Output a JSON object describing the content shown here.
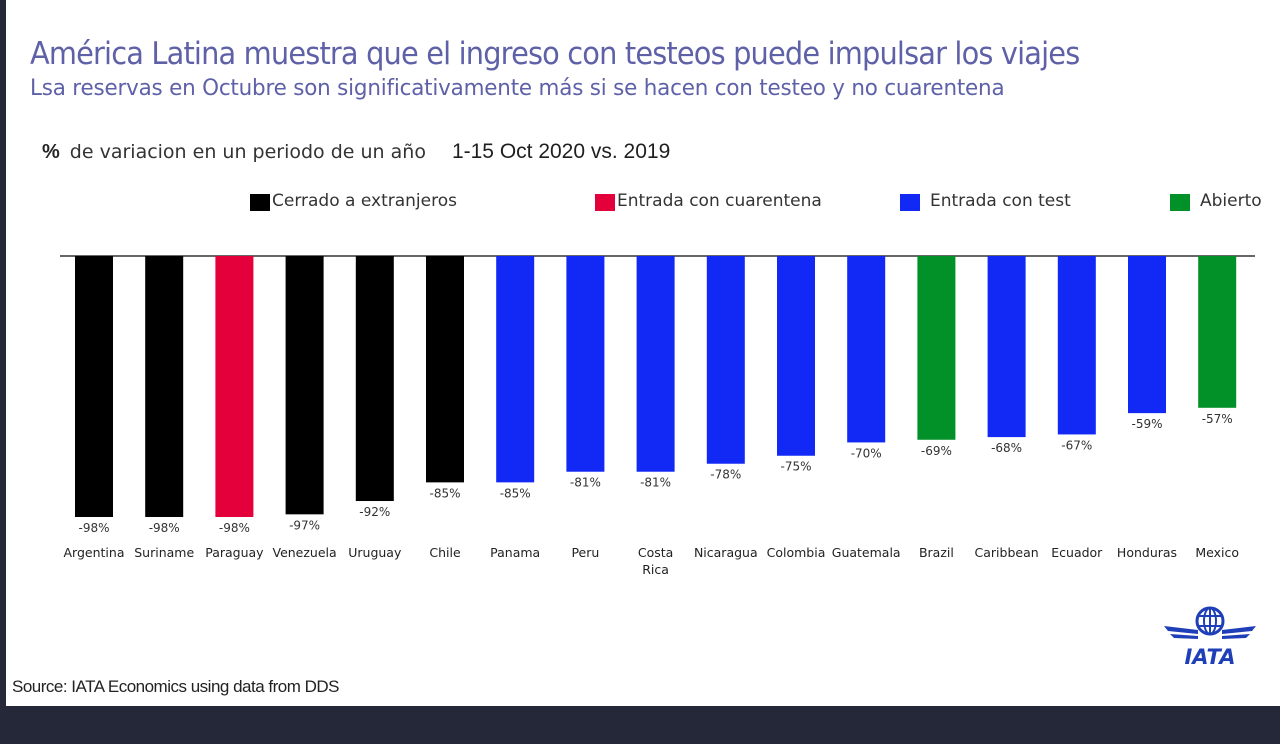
{
  "header": {
    "title": "América Latina muestra que el ingreso con testeos puede impulsar los viajes",
    "subtitle": "Lsa reservas en Octubre son significativamente más si se hacen con testeo y no cuarentena"
  },
  "metric": {
    "symbol": "%",
    "description": "de variacion en un periodo de un año",
    "period": "1-15 Oct 2020 vs. 2019"
  },
  "legend": [
    {
      "label": "Cerrado a extranjeros",
      "color": "#000000",
      "key": "closed"
    },
    {
      "label": "Entrada con cuarentena",
      "color": "#e4003a",
      "key": "quarantine"
    },
    {
      "label": "Entrada con test",
      "color": "#1228f5",
      "key": "test"
    },
    {
      "label": "Abierto",
      "color": "#029129",
      "key": "open"
    }
  ],
  "chart_data": {
    "type": "bar",
    "title": "% de variacion en un periodo de un año — 1-15 Oct 2020 vs. 2019",
    "xlabel": "",
    "ylabel": "%",
    "ylim": [
      -100,
      0
    ],
    "grid": false,
    "legend_position": "top",
    "categories": [
      "Argentina",
      "Suriname",
      "Paraguay",
      "Venezuela",
      "Uruguay",
      "Chile",
      "Panama",
      "Peru",
      "Costa Rica",
      "Nicaragua",
      "Colombia",
      "Guatemala",
      "Brazil",
      "Caribbean",
      "Ecuador",
      "Honduras",
      "Mexico"
    ],
    "values": [
      -98,
      -98,
      -98,
      -97,
      -92,
      -85,
      -85,
      -81,
      -81,
      -78,
      -75,
      -70,
      -69,
      -68,
      -67,
      -59,
      -57
    ],
    "labels": [
      "-98%",
      "-98%",
      "-98%",
      "-97%",
      "-92%",
      "-85%",
      "-85%",
      "-81%",
      "-81%",
      "-78%",
      "-75%",
      "-70%",
      "-69%",
      "-68%",
      "-67%",
      "-59%",
      "-57%"
    ],
    "groups": [
      "closed",
      "closed",
      "quarantine",
      "closed",
      "closed",
      "closed",
      "test",
      "test",
      "test",
      "test",
      "test",
      "test",
      "open",
      "test",
      "test",
      "test",
      "open"
    ],
    "series": [
      {
        "name": "Cerrado a extranjeros",
        "color": "#000000"
      },
      {
        "name": "Entrada con cuarentena",
        "color": "#e4003a"
      },
      {
        "name": "Entrada con test",
        "color": "#1228f5"
      },
      {
        "name": "Abierto",
        "color": "#029129"
      }
    ]
  },
  "footer": {
    "source": "Source: IATA Economics using data from DDS",
    "logo_text": "IATA"
  }
}
